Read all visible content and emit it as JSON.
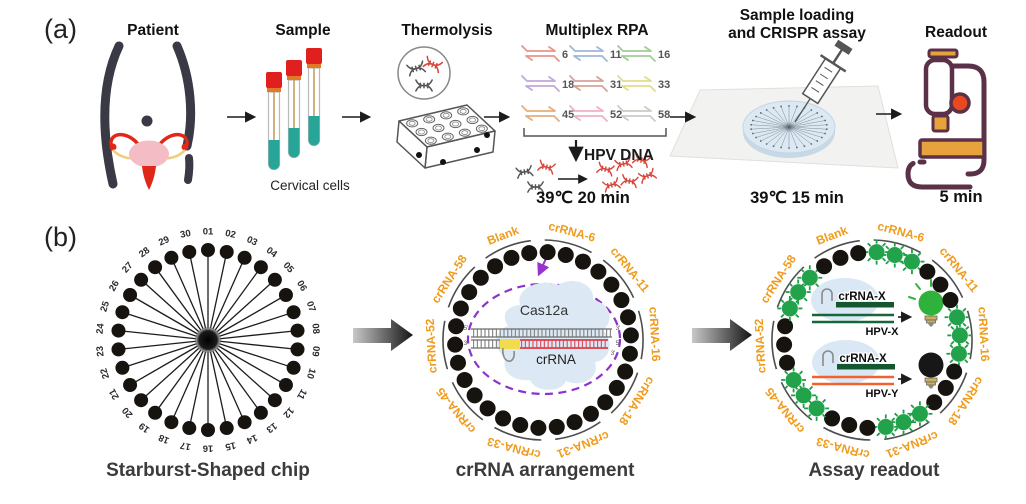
{
  "panel_a": {
    "label": "(a)",
    "patient": {
      "title": "Patient"
    },
    "sample": {
      "title": "Sample",
      "caption": "Cervical cells"
    },
    "thermolysis": {
      "title": "Thermolysis"
    },
    "rpa": {
      "title": "Multiplex RPA",
      "primers": [
        {
          "num": "6",
          "color": "#E8958A"
        },
        {
          "num": "11",
          "color": "#9FB8D8"
        },
        {
          "num": "16",
          "color": "#A3CC96"
        },
        {
          "num": "18",
          "color": "#C4A8D6"
        },
        {
          "num": "31",
          "color": "#D8A396"
        },
        {
          "num": "33",
          "color": "#E3DC8A"
        },
        {
          "num": "45",
          "color": "#E5AE7C"
        },
        {
          "num": "52",
          "color": "#EFB0C6"
        },
        {
          "num": "58",
          "color": "#CBCBC5"
        }
      ],
      "product_label": "HPV DNA",
      "condition": "39℃  20 min"
    },
    "loading": {
      "title_line1": "Sample loading",
      "title_line2": "and CRISPR assay",
      "condition": "39℃  15 min"
    },
    "readout": {
      "title": "Readout",
      "condition": "5 min"
    }
  },
  "panel_b": {
    "label": "(b)",
    "chip": {
      "caption": "Starburst-Shaped chip",
      "positions": [
        "01",
        "02",
        "03",
        "04",
        "05",
        "06",
        "07",
        "08",
        "09",
        "10",
        "11",
        "12",
        "13",
        "14",
        "15",
        "16",
        "17",
        "18",
        "19",
        "20",
        "21",
        "22",
        "23",
        "24",
        "25",
        "26",
        "27",
        "28",
        "29",
        "30"
      ]
    },
    "arrangement": {
      "caption": "crRNA arrangement",
      "groups": [
        "crRNA-6",
        "crRNA-11",
        "crRNA-16",
        "crRNA-18",
        "crRNA-31",
        "crRNA-33",
        "crRNA-45",
        "crRNA-52",
        "crRNA-58",
        "Blank"
      ],
      "cas_label": "Cas12a",
      "crrna_label": "crRNA",
      "end_labels": {
        "tl": "5'",
        "tr": "3'",
        "bl": "3'",
        "br": "5'",
        "crrna_end": "3'"
      }
    },
    "readout_ring": {
      "caption": "Assay readout",
      "groups": [
        "crRNA-6",
        "crRNA-11",
        "crRNA-16",
        "crRNA-18",
        "crRNA-31",
        "crRNA-33",
        "crRNA-45",
        "crRNA-52",
        "crRNA-58",
        "Blank"
      ],
      "green_groups": [
        "crRNA-6",
        "crRNA-16",
        "crRNA-31",
        "crRNA-45",
        "crRNA-58"
      ],
      "cases": [
        {
          "crrna_label": "crRNA-X",
          "target_label": "HPV-X",
          "state": "on"
        },
        {
          "crrna_label": "crRNA-X",
          "target_label": "HPV-Y",
          "state": "off"
        }
      ]
    },
    "colors": {
      "label_orange": "#F09B1C",
      "signal_green": "#21A24B",
      "dashed_purple": "#8B33CC"
    }
  }
}
